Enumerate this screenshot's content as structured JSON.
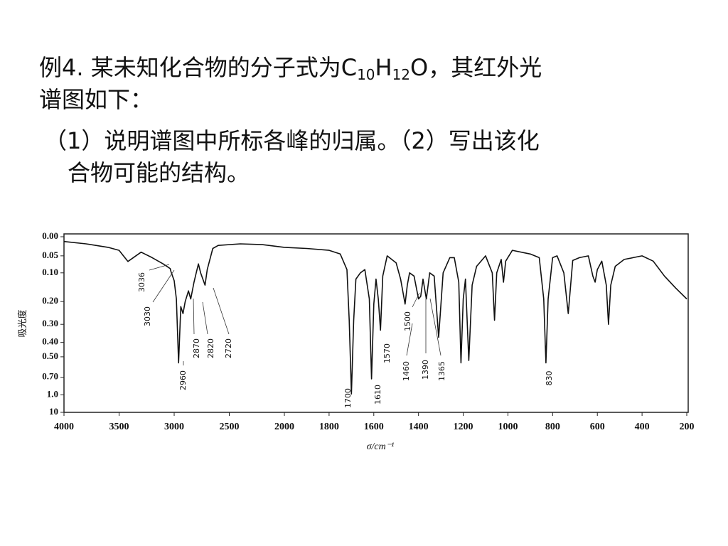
{
  "question": {
    "line1": [
      "例4. 某未知化合物的分子式为C",
      "10",
      "H",
      "12",
      "O，其红外光"
    ],
    "line2": "谱图如下：",
    "line3": "（1）说明谱图中所标各峰的归属。（2）写出该化",
    "line4": "合物可能的结构。"
  },
  "chart_data": {
    "type": "line",
    "x_label": "σ/cm⁻¹",
    "y_label": "吸光度",
    "color": "#111111",
    "y_scale": "transmittance",
    "x_break": 2000,
    "xlim": [
      4000,
      200
    ],
    "xticks": [
      4000,
      3500,
      3000,
      2500,
      2000,
      1800,
      1600,
      1400,
      1200,
      1000,
      800,
      600,
      400,
      200
    ],
    "ylim": [
      0,
      10
    ],
    "yticks": [
      {
        "value": 0,
        "label": "0.00"
      },
      {
        "value": 0.05,
        "label": "0.05"
      },
      {
        "value": 0.1,
        "label": "0.10"
      },
      {
        "value": 0.2,
        "label": "0.20"
      },
      {
        "value": 0.3,
        "label": "0.30"
      },
      {
        "value": 0.4,
        "label": "0.40"
      },
      {
        "value": 0.5,
        "label": "0.50"
      },
      {
        "value": 0.7,
        "label": "0.70"
      },
      {
        "value": 1,
        "label": "1.0"
      },
      10
    ],
    "x": [
      4000,
      3800,
      3600,
      3500,
      3420,
      3300,
      3200,
      3100,
      3036,
      3030,
      3000,
      2980,
      2960,
      2940,
      2920,
      2900,
      2870,
      2850,
      2820,
      2800,
      2780,
      2760,
      2720,
      2700,
      2650,
      2600,
      2400,
      2200,
      2000,
      1900,
      1800,
      1750,
      1720,
      1710,
      1700,
      1690,
      1680,
      1660,
      1640,
      1620,
      1610,
      1600,
      1590,
      1580,
      1570,
      1560,
      1540,
      1500,
      1480,
      1460,
      1450,
      1440,
      1420,
      1400,
      1390,
      1380,
      1365,
      1350,
      1330,
      1310,
      1290,
      1260,
      1240,
      1220,
      1210,
      1200,
      1190,
      1175,
      1160,
      1140,
      1100,
      1070,
      1060,
      1050,
      1030,
      1020,
      1010,
      980,
      900,
      860,
      840,
      830,
      820,
      800,
      780,
      750,
      730,
      710,
      680,
      640,
      620,
      610,
      600,
      580,
      560,
      550,
      540,
      520,
      480,
      400,
      350,
      300,
      250,
      200
    ],
    "values": [
      0.012,
      0.018,
      0.027,
      0.035,
      0.066,
      0.04,
      0.055,
      0.073,
      0.087,
      0.095,
      0.125,
      0.19,
      0.55,
      0.22,
      0.25,
      0.2,
      0.16,
      0.19,
      0.13,
      0.1,
      0.073,
      0.1,
      0.14,
      0.09,
      0.03,
      0.022,
      0.018,
      0.02,
      0.027,
      0.03,
      0.035,
      0.045,
      0.09,
      0.28,
      0.98,
      0.28,
      0.12,
      0.1,
      0.09,
      0.19,
      0.72,
      0.21,
      0.12,
      0.19,
      0.33,
      0.11,
      0.05,
      0.07,
      0.12,
      0.21,
      0.14,
      0.1,
      0.11,
      0.19,
      0.18,
      0.12,
      0.19,
      0.1,
      0.11,
      0.37,
      0.1,
      0.055,
      0.055,
      0.13,
      0.55,
      0.19,
      0.12,
      0.53,
      0.14,
      0.08,
      0.05,
      0.1,
      0.28,
      0.1,
      0.06,
      0.13,
      0.065,
      0.035,
      0.045,
      0.055,
      0.19,
      0.55,
      0.19,
      0.055,
      0.05,
      0.1,
      0.25,
      0.063,
      0.055,
      0.05,
      0.11,
      0.13,
      0.09,
      0.065,
      0.14,
      0.3,
      0.14,
      0.08,
      0.06,
      0.05,
      0.065,
      0.11,
      0.15,
      0.19
    ],
    "peaks": [
      3036,
      3030,
      2960,
      2870,
      2820,
      2720,
      1700,
      1610,
      1570,
      1500,
      1460,
      1390,
      1365,
      830
    ]
  }
}
